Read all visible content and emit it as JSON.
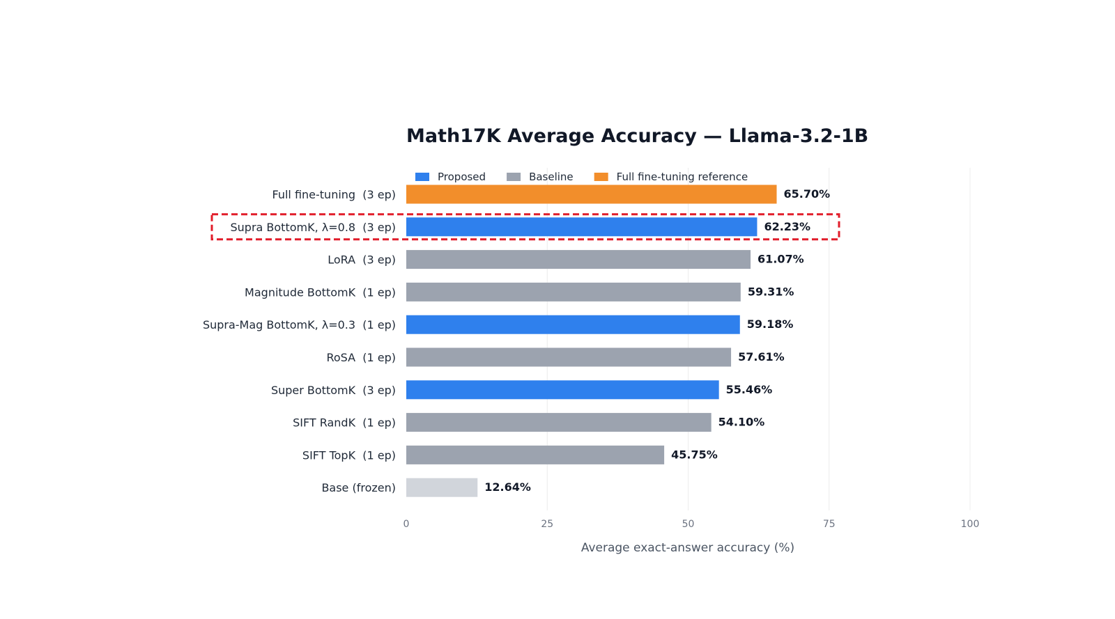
{
  "chart_data": {
    "type": "bar",
    "orientation": "horizontal",
    "title": "Math17K Average Accuracy — Llama-3.2-1B",
    "xlabel": "Average exact-answer accuracy (%)",
    "ylabel": "",
    "xlim": [
      0,
      100
    ],
    "xticks": [
      0,
      25,
      50,
      75,
      100
    ],
    "grid": "vertical",
    "legend_position": "top-left",
    "legend": [
      {
        "name": "Proposed",
        "color": "#2f80ed"
      },
      {
        "name": "Baseline",
        "color": "#9ca3af"
      },
      {
        "name": "Full fine-tuning reference",
        "color": "#f28e2b"
      }
    ],
    "colors": {
      "proposed": "#2f80ed",
      "baseline": "#9ca3af",
      "reference": "#f28e2b",
      "frozen": "#d1d5db",
      "highlight": "#e11d2a"
    },
    "categories": [
      "Full fine-tuning  (3 ep)",
      "Supra BottomK, λ=0.8  (3 ep)",
      "LoRA  (3 ep)",
      "Magnitude BottomK  (1 ep)",
      "Supra-Mag BottomK, λ=0.3  (1 ep)",
      "RoSA  (1 ep)",
      "Super BottomK  (3 ep)",
      "SIFT RandK  (1 ep)",
      "SIFT TopK  (1 ep)",
      "Base (frozen)"
    ],
    "values": [
      65.7,
      62.23,
      61.07,
      59.31,
      59.18,
      57.61,
      55.46,
      54.1,
      45.75,
      12.64
    ],
    "value_labels": [
      "65.70%",
      "62.23%",
      "61.07%",
      "59.31%",
      "59.18%",
      "57.61%",
      "55.46%",
      "54.10%",
      "45.75%",
      "12.64%"
    ],
    "groups": [
      "reference",
      "proposed",
      "baseline",
      "baseline",
      "proposed",
      "baseline",
      "proposed",
      "baseline",
      "baseline",
      "frozen"
    ],
    "highlighted_category": "Supra BottomK, λ=0.8  (3 ep)"
  }
}
